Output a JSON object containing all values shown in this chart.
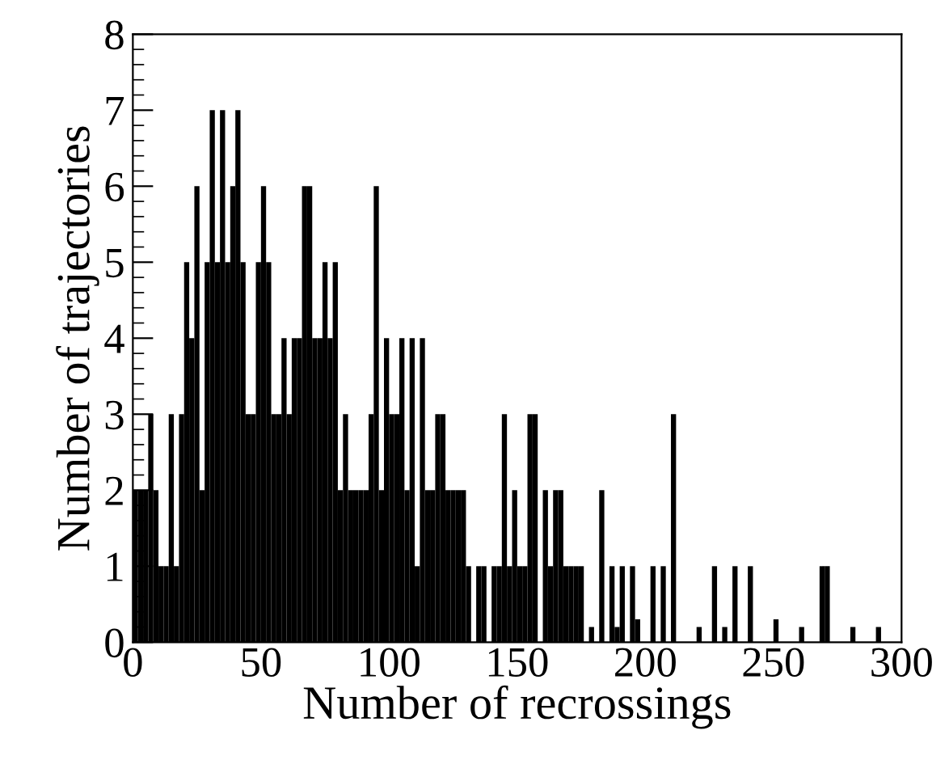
{
  "chart_data": {
    "type": "histogram",
    "xlabel": "Number of recrossings",
    "ylabel": "Number of trajectories",
    "color": "#000000",
    "bins": [
      0,
      2,
      4,
      6,
      8,
      10,
      12,
      14,
      16,
      18,
      20,
      22,
      24,
      26,
      28,
      30,
      32,
      34,
      36,
      38,
      40,
      42,
      44,
      46,
      48,
      50,
      52,
      54,
      56,
      58,
      60,
      62,
      64,
      66,
      68,
      70,
      72,
      74,
      76,
      78,
      80,
      82,
      84,
      86,
      88,
      90,
      92,
      94,
      96,
      98,
      100,
      102,
      104,
      106,
      108,
      110,
      112,
      114,
      116,
      118,
      120,
      122,
      124,
      126,
      128,
      130,
      132,
      134,
      136,
      138,
      140,
      142,
      144,
      146,
      148,
      150,
      152,
      154,
      156,
      158,
      160,
      162,
      164,
      166,
      168,
      170,
      172,
      174,
      176,
      178,
      180,
      182,
      184,
      186,
      188,
      190,
      192,
      194,
      196,
      198,
      200,
      202,
      204,
      206,
      208,
      210,
      212,
      214,
      216,
      218,
      220,
      222,
      224,
      226,
      228,
      230,
      232,
      234,
      236,
      238,
      240,
      242,
      244,
      246,
      248,
      250,
      252,
      254,
      256,
      258,
      260,
      262,
      264,
      266,
      268,
      270,
      272,
      274,
      276,
      278,
      280,
      282,
      284,
      286,
      288,
      290,
      292,
      294,
      296,
      298,
      300
    ],
    "values": [
      2,
      2,
      2,
      3,
      2,
      1,
      1,
      3,
      1,
      3,
      5,
      4,
      6,
      2,
      5,
      7,
      5,
      7,
      5,
      6,
      7,
      5,
      3,
      3,
      5,
      6,
      5,
      3,
      3,
      4,
      3,
      4,
      4,
      6,
      6,
      4,
      4,
      5,
      4,
      5,
      2,
      3,
      2,
      2,
      2,
      2,
      3,
      6,
      2,
      4,
      3,
      3,
      4,
      2,
      4,
      1,
      4,
      2,
      2,
      3,
      3,
      2,
      2,
      2,
      2,
      1,
      0,
      1,
      1,
      0,
      1,
      1,
      3,
      1,
      2,
      1,
      1,
      3,
      3,
      0,
      2,
      1,
      2,
      2,
      1,
      1,
      1,
      1,
      0,
      0.2,
      0,
      2,
      0,
      1,
      0.2,
      1,
      0,
      1,
      0.3,
      0,
      0,
      1,
      0,
      1,
      0,
      3,
      0,
      0,
      0,
      0,
      0.2,
      0,
      0,
      1,
      0,
      0.2,
      0,
      1,
      0,
      0,
      1,
      0,
      0,
      0,
      0,
      0.3,
      0,
      0,
      0,
      0,
      0.2,
      0,
      0,
      0,
      1,
      1,
      0,
      0,
      0,
      0,
      0.2,
      0,
      0,
      0,
      0,
      0.2,
      0,
      0,
      0,
      0
    ],
    "xlim": [
      0,
      300
    ],
    "ylim": [
      0,
      8
    ],
    "xticks": [
      0,
      50,
      100,
      150,
      200,
      250,
      300
    ],
    "yticks": [
      0,
      1,
      2,
      3,
      4,
      5,
      6,
      7,
      8
    ],
    "grid": false,
    "legend": false
  }
}
